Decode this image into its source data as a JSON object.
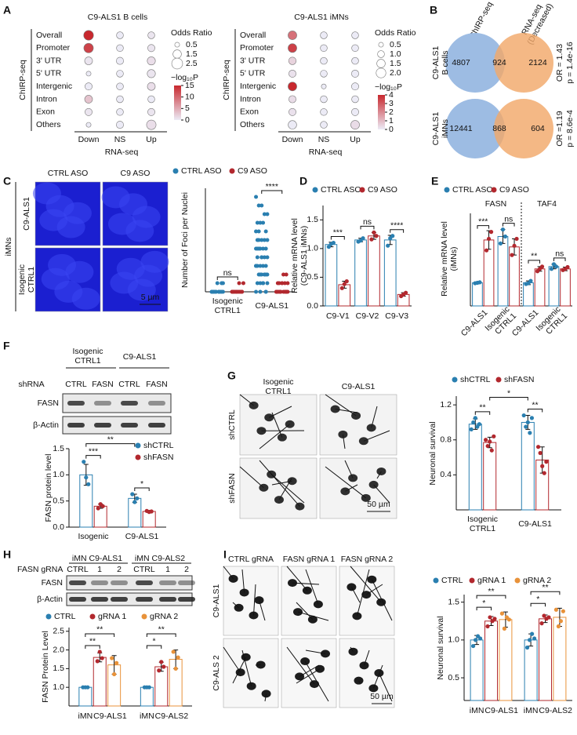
{
  "panel_labels": [
    "A",
    "B",
    "C",
    "D",
    "E",
    "F",
    "G",
    "H",
    "I"
  ],
  "images": {
    "C": {
      "columns": [
        "CTRL ASO",
        "C9 ASO"
      ],
      "rows": [
        "C9-ALS1",
        [
          "Isogenic",
          "CTRL1"
        ]
      ],
      "group": "iMNs",
      "scale_bar": "5 µm"
    },
    "G": {
      "columns": [
        [
          "Isogenic",
          "CTRL1"
        ],
        "C9-ALS1"
      ],
      "rows": [
        "shCTRL",
        "shFASN"
      ],
      "scale_bar": "50 µm"
    },
    "I": {
      "columns": [
        "CTRL gRNA",
        "FASN gRNA 1",
        "FASN gRNA 2"
      ],
      "rows": [
        "C9-ALS1",
        "C9-ALS 2"
      ],
      "scale_bar": "50 µm"
    }
  },
  "blots": {
    "F": {
      "groups": [
        [
          "Isogenic",
          "CTRL1"
        ],
        "C9-ALS1"
      ],
      "lane_title": "shRNA",
      "lanes": [
        "CTRL",
        "FASN",
        "CTRL",
        "FASN"
      ],
      "rows": [
        "FASN",
        "β-Actin"
      ]
    },
    "H": {
      "groups": [
        "iMN C9-ALS1",
        "iMN C9-ALS2"
      ],
      "lane_title": "FASN gRNA",
      "lanes": [
        "CTRL",
        "1",
        "2",
        "CTRL",
        "1",
        "2"
      ],
      "rows": [
        "FASN",
        "β-Actin"
      ]
    }
  },
  "chart_data": [
    {
      "type": "dotmatrix",
      "title": "C9-ALS1 B cells",
      "rows": [
        "Overall",
        "Promoter",
        "3' UTR",
        "5' UTR",
        "Intergenic",
        "Intron",
        "Exon",
        "Others"
      ],
      "columns": [
        "Down",
        "NS",
        "Up"
      ],
      "y_label": "ChIRP-seq",
      "x_label": "RNA-seq",
      "size": [
        [
          2.0,
          1.0,
          1.0
        ],
        [
          1.9,
          1.0,
          1.1
        ],
        [
          1.3,
          1.1,
          1.4
        ],
        [
          0.5,
          1.0,
          1.4
        ],
        [
          1.1,
          1.0,
          1.3
        ],
        [
          1.3,
          1.0,
          1.0
        ],
        [
          1.1,
          1.0,
          1.1
        ],
        [
          0.5,
          1.1,
          1.9
        ]
      ],
      "color_values": [
        [
          15,
          0,
          0.5
        ],
        [
          13,
          0,
          0.5
        ],
        [
          0.5,
          0,
          1
        ],
        [
          0,
          0,
          0.5
        ],
        [
          0,
          0,
          1
        ],
        [
          3,
          0,
          0
        ],
        [
          0.5,
          0,
          0.5
        ],
        [
          0,
          0,
          1
        ]
      ],
      "size_title": "Odds Ratio",
      "size_ticks": [
        0.5,
        1.5,
        2.5
      ],
      "color_title": "−log₁₀P",
      "color_lim": [
        0,
        15
      ],
      "color_ticks": [
        0,
        5,
        10,
        15
      ],
      "colors": [
        "#ecebf6",
        "#c8282e"
      ]
    },
    {
      "type": "dotmatrix",
      "title": "C9-ALS1 iMNs",
      "rows": [
        "Overall",
        "Promoter",
        "3' UTR",
        "5' UTR",
        "Intergenic",
        "Intron",
        "Exon",
        "Others"
      ],
      "columns": [
        "Down",
        "NS",
        "Up"
      ],
      "y_label": "ChIRP-seq",
      "x_label": "RNA-seq",
      "size": [
        [
          1.6,
          1.0,
          1.0
        ],
        [
          1.6,
          1.0,
          1.0
        ],
        [
          1.2,
          1.0,
          1.0
        ],
        [
          1.1,
          1.0,
          1.1
        ],
        [
          1.6,
          0.5,
          1.1
        ],
        [
          1.1,
          1.0,
          1.0
        ],
        [
          1.1,
          1.0,
          1.1
        ],
        [
          1.5,
          1.0,
          1.6
        ]
      ],
      "color_values": [
        [
          2.5,
          0,
          0
        ],
        [
          3.5,
          0,
          0
        ],
        [
          0.5,
          0,
          0
        ],
        [
          0.2,
          0,
          0
        ],
        [
          4,
          0,
          0
        ],
        [
          0.3,
          0,
          0
        ],
        [
          0.2,
          0,
          0
        ],
        [
          0,
          0,
          0.3
        ]
      ],
      "size_title": "Odds Ratio",
      "size_ticks": [
        0.5,
        {
          "value": 1,
          "label": "1.0"
        },
        1.5,
        {
          "value": 2,
          "label": "2.0"
        }
      ],
      "color_title": "−log₁₀P",
      "color_lim": [
        0,
        4
      ],
      "color_ticks": [
        0,
        1,
        2,
        3,
        4
      ],
      "colors": [
        "#ecebf6",
        "#c8282e"
      ]
    },
    {
      "type": "venn",
      "set_labels": [
        "ChIRP-seq",
        [
          "RNA-seq",
          "(Decreased)"
        ]
      ],
      "set_colors": [
        "#9dbce3",
        "#f2a86a"
      ],
      "label_colors": [
        "#3b6fb6",
        "#e0893a"
      ],
      "rows": [
        {
          "label": [
            "C9-ALS1",
            "B cells"
          ],
          "counts": [
            4807,
            924,
            2124
          ],
          "stats": [
            "OR = 1.43",
            "p = 1.4e-16"
          ]
        },
        {
          "label": [
            "C9-ALS1",
            "iMNs"
          ],
          "counts": [
            12441,
            868,
            604
          ],
          "stats": [
            "OR =1.19",
            "p = 8.6e-4"
          ]
        }
      ]
    },
    {
      "type": "strip",
      "y_label": "Number of Foci per Nuclei",
      "categories": [
        [
          "Isogenic",
          "CTRL1"
        ],
        "C9-ALS1"
      ],
      "ylim": [
        0,
        12
      ],
      "series": [
        {
          "name": "CTRL ASO",
          "color": "#2a7fb0",
          "points": [
            [
              0,
              0,
              0,
              0,
              0,
              0,
              0,
              1,
              0,
              0,
              1,
              0,
              0,
              0,
              1
            ],
            [
              0,
              0,
              1,
              1,
              1,
              2,
              2,
              2,
              2,
              3,
              3,
              3,
              3,
              4,
              4,
              4,
              4,
              5,
              5,
              5,
              5,
              5,
              6,
              6,
              6,
              6,
              7,
              7,
              7,
              8,
              8,
              8,
              9,
              9,
              10,
              10,
              11,
              0,
              1,
              2,
              3,
              1,
              2,
              4,
              6,
              3,
              2,
              1,
              0,
              5
            ]
          ]
        },
        {
          "name": "C9 ASO",
          "color": "#b2282e",
          "points": [
            [
              0,
              0,
              0,
              0,
              0,
              1,
              0,
              0,
              0,
              0,
              0,
              1,
              0,
              0
            ],
            [
              0,
              0,
              0,
              0,
              0,
              1,
              1,
              1,
              1,
              0,
              0,
              2,
              0,
              1,
              0,
              0,
              1,
              0,
              0,
              2
            ]
          ]
        }
      ],
      "annotations": [
        "ns",
        "****"
      ]
    },
    {
      "type": "bar",
      "y_label": [
        "Relative mRNA level",
        "(C9-ALS1 iMNs)"
      ],
      "categories": [
        "C9-V1",
        "C9-V2",
        "C9-V3"
      ],
      "ylim": [
        0,
        1.75
      ],
      "yticks": [
        {
          "value": 0,
          "label": "0.0"
        },
        0.5,
        {
          "value": 1,
          "label": "1.0"
        },
        1.5
      ],
      "series": [
        {
          "name": "CTRL ASO",
          "color": "#2a7fb0",
          "values": [
            1.07,
            1.15,
            1.15
          ],
          "errors": [
            0.04,
            0.03,
            0.08
          ],
          "points": [
            [
              1.03,
              1.08,
              1.1
            ],
            [
              1.12,
              1.14,
              1.18
            ],
            [
              1.05,
              1.18,
              1.22
            ]
          ]
        },
        {
          "name": "C9 ASO",
          "color": "#b2282e",
          "values": [
            0.37,
            1.22,
            0.2
          ],
          "errors": [
            0.06,
            0.06,
            0.03
          ],
          "points": [
            [
              0.31,
              0.38,
              0.43
            ],
            [
              1.16,
              1.28,
              1.22
            ],
            [
              0.17,
              0.2,
              0.23
            ]
          ]
        }
      ],
      "annotations": [
        "***",
        "ns",
        "****"
      ]
    },
    {
      "type": "bar",
      "y_label": [
        "Relative mRNA level",
        "(iMNs)"
      ],
      "groups": [
        "FASN",
        "TAF4"
      ],
      "categories": [
        "C9-ALS1",
        [
          "Isogenic",
          "CTRL1"
        ],
        "C9-ALS1",
        [
          "Isogenic",
          "CTRL1"
        ]
      ],
      "ylim": [
        0,
        4
      ],
      "series": [
        {
          "name": "CTRL ASO",
          "color": "#2a7fb0",
          "values": [
            1.0,
            3.0,
            1.0,
            1.7
          ],
          "errors": [
            0.02,
            0.3,
            0.08,
            0.1
          ],
          "points": [
            [
              0.98,
              1.0,
              1.02
            ],
            [
              2.7,
              3.3,
              3.0
            ],
            [
              0.95,
              0.98,
              1.08
            ],
            [
              1.6,
              1.8,
              1.7
            ]
          ]
        },
        {
          "name": "C9 ASO",
          "color": "#b2282e",
          "values": [
            2.85,
            2.55,
            1.6,
            1.6
          ],
          "errors": [
            0.4,
            0.35,
            0.1,
            0.08
          ],
          "points": [
            [
              2.4,
              2.9,
              3.2
            ],
            [
              2.2,
              2.6,
              2.9
            ],
            [
              1.5,
              1.6,
              1.7
            ],
            [
              1.55,
              1.6,
              1.68
            ]
          ]
        }
      ],
      "annotations": [
        "***",
        "ns",
        "**",
        "ns"
      ]
    },
    {
      "type": "bar",
      "y_label": "FASN protein level",
      "categories": [
        "Isogenic",
        "C9-ALS1"
      ],
      "ylim": [
        0,
        1.5
      ],
      "yticks": [
        {
          "value": 0,
          "label": "0.0"
        },
        0.5,
        {
          "value": 1,
          "label": "1.0"
        },
        1.5
      ],
      "series": [
        {
          "name": "shCTRL",
          "color": "#2a7fb0",
          "values": [
            1.0,
            0.55
          ],
          "errors": [
            0.2,
            0.08
          ],
          "points": [
            [
              1.25,
              0.95,
              0.82
            ],
            [
              0.63,
              0.48,
              0.55
            ]
          ]
        },
        {
          "name": "shFASN",
          "color": "#b2282e",
          "values": [
            0.4,
            0.3
          ],
          "errors": [
            0.04,
            0.02
          ],
          "points": [
            [
              0.36,
              0.44,
              0.4
            ],
            [
              0.31,
              0.29,
              0.3
            ]
          ]
        }
      ],
      "annotations": [
        "***",
        "**",
        "*"
      ]
    },
    {
      "type": "bar",
      "y_label": "Neuronal survival",
      "categories": [
        [
          "Isogenic",
          "CTRL1"
        ],
        "C9-ALS1"
      ],
      "ylim": [
        0,
        1.3
      ],
      "yticks": [
        0.4,
        0.8,
        1.2
      ],
      "series": [
        {
          "name": "shCTRL",
          "color": "#2a7fb0",
          "values": [
            0.98,
            1.0
          ],
          "errors": [
            0.06,
            0.08
          ],
          "points": [
            [
              0.92,
              1.0,
              1.05,
              0.95,
              0.98
            ],
            [
              1.08,
              0.95,
              1.0,
              0.88,
              1.05
            ]
          ]
        },
        {
          "name": "shFASN",
          "color": "#b2282e",
          "values": [
            0.77,
            0.57
          ],
          "errors": [
            0.06,
            0.15
          ],
          "points": [
            [
              0.8,
              0.73,
              0.78,
              0.68,
              0.84
            ],
            [
              0.72,
              0.65,
              0.5,
              0.42,
              0.55
            ]
          ]
        }
      ],
      "annotations": [
        "**",
        "**",
        "*"
      ]
    },
    {
      "type": "bar",
      "y_label": "FASN  Protein Level",
      "categories": [
        [
          "iMN",
          "C9-ALS1"
        ],
        [
          "iMN",
          "C9-ALS2"
        ]
      ],
      "ylim": [
        0.5,
        2.6
      ],
      "yticks": [
        {
          "value": 1,
          "label": "1.0"
        },
        1.5,
        {
          "value": 2,
          "label": "2.0"
        },
        2.5
      ],
      "series": [
        {
          "name": "CTRL",
          "color": "#2a7fb0",
          "values": [
            1.0,
            1.0
          ],
          "errors": [
            0,
            0
          ],
          "points": [
            [
              1.0,
              1.0,
              1.0
            ],
            [
              1.0,
              1.0,
              1.0
            ]
          ]
        },
        {
          "name": "gRNA 1",
          "color": "#b2282e",
          "values": [
            1.8,
            1.55
          ],
          "errors": [
            0.12,
            0.12
          ],
          "points": [
            [
              1.7,
              1.95,
              1.78
            ],
            [
              1.45,
              1.68,
              1.55
            ]
          ]
        },
        {
          "name": "gRNA 2",
          "color": "#e8923a",
          "values": [
            1.6,
            1.75
          ],
          "errors": [
            0.25,
            0.25
          ],
          "points": [
            [
              1.78,
              1.35,
              1.65
            ],
            [
              1.95,
              1.5,
              1.8
            ]
          ]
        }
      ],
      "annotations": [
        "**",
        "**",
        "*",
        "**"
      ]
    },
    {
      "type": "bar",
      "y_label": "Neuronal survival",
      "categories": [
        [
          "iMN",
          "C9-ALS1"
        ],
        [
          "iMN",
          "C9-ALS2"
        ]
      ],
      "ylim": [
        0.2,
        1.6
      ],
      "yticks": [
        0.5,
        {
          "value": 1,
          "label": "1.0"
        },
        1.5
      ],
      "series": [
        {
          "name": "CTRL",
          "color": "#2a7fb0",
          "values": [
            1.0,
            1.0
          ],
          "errors": [
            0.06,
            0.08
          ],
          "points": [
            [
              0.92,
              1.0,
              1.05,
              1.02
            ],
            [
              0.9,
              1.0,
              1.08,
              1.02
            ]
          ]
        },
        {
          "name": "gRNA 1",
          "color": "#b2282e",
          "values": [
            1.25,
            1.28
          ],
          "errors": [
            0.06,
            0.05
          ],
          "points": [
            [
              1.18,
              1.3,
              1.25,
              1.28
            ],
            [
              1.22,
              1.32,
              1.28,
              1.3
            ]
          ]
        },
        {
          "name": "gRNA 2",
          "color": "#e8923a",
          "values": [
            1.27,
            1.3
          ],
          "errors": [
            0.1,
            0.12
          ],
          "points": [
            [
              1.35,
              1.15,
              1.3,
              1.27
            ],
            [
              1.4,
              1.18,
              1.25,
              1.38
            ]
          ]
        }
      ],
      "annotations": [
        "*",
        "**",
        "*",
        "**"
      ]
    }
  ]
}
